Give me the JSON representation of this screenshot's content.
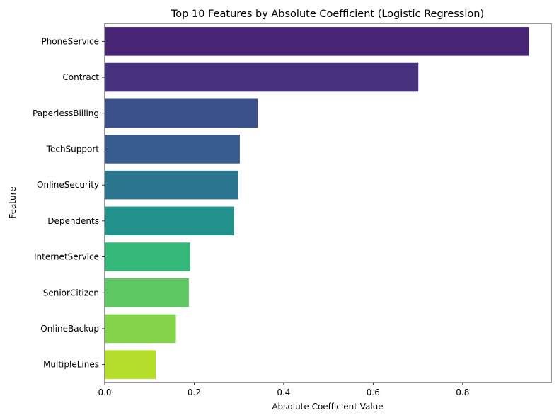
{
  "chart_data": {
    "type": "bar",
    "orientation": "horizontal",
    "title": "Top 10 Features by Absolute Coefficient (Logistic Regression)",
    "xlabel": "Absolute Coefficient Value",
    "ylabel": "Feature",
    "categories": [
      "PhoneService",
      "Contract",
      "PaperlessBilling",
      "TechSupport",
      "OnlineSecurity",
      "Dependents",
      "InternetService",
      "SeniorCitizen",
      "OnlineBackup",
      "MultipleLines"
    ],
    "values": [
      0.948,
      0.701,
      0.342,
      0.302,
      0.298,
      0.289,
      0.191,
      0.188,
      0.159,
      0.114
    ],
    "colors": [
      "#482475",
      "#46327e",
      "#3b518b",
      "#365d8d",
      "#2b758e",
      "#21918c",
      "#35b779",
      "#5ec962",
      "#84d44b",
      "#b5de2b"
    ],
    "xlim": [
      0,
      0.998
    ],
    "xticks": [
      0.0,
      0.2,
      0.4,
      0.6,
      0.8
    ],
    "xtick_labels": [
      "0.0",
      "0.2",
      "0.4",
      "0.6",
      "0.8"
    ],
    "grid": false,
    "legend": "none"
  }
}
